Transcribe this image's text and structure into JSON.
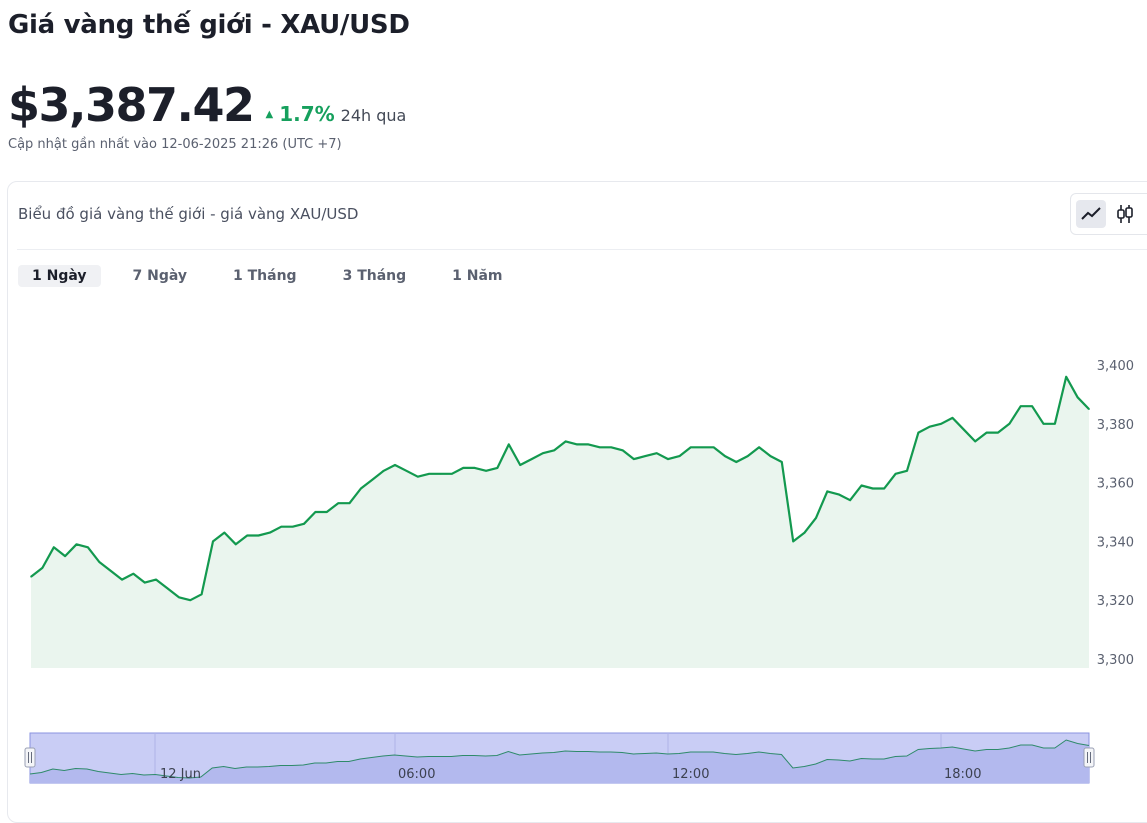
{
  "header": {
    "title": "Giá vàng thế giới - XAU/USD",
    "price": "$3,387.42",
    "change": "1.7%",
    "period": "24h qua",
    "updated": "Cập nhật gần nhất vào 12-06-2025 21:26 (UTC +7)"
  },
  "card": {
    "title": "Biểu đồ giá vàng thế giới - giá vàng XAU/USD",
    "chart_type_buttons": [
      "line-chart-icon",
      "candlestick-icon"
    ],
    "tabs": [
      {
        "label": "1 Ngày",
        "active": true
      },
      {
        "label": "7 Ngày",
        "active": false
      },
      {
        "label": "1 Tháng",
        "active": false
      },
      {
        "label": "3 Tháng",
        "active": false
      },
      {
        "label": "1 Năm",
        "active": false
      }
    ]
  },
  "colors": {
    "line": "#13994f",
    "area": "#eaf5ee",
    "positive": "#16a05d",
    "navigator_fill": "#c9cdf5",
    "navigator_border": "#8a93e0"
  },
  "chart_data": {
    "type": "area",
    "title": "",
    "xlabel": "",
    "ylabel": "",
    "ylim": [
      3300,
      3400
    ],
    "yticks": [
      "3,300",
      "3,320",
      "3,340",
      "3,360",
      "3,380",
      "3,400"
    ],
    "grid": false,
    "series": [
      {
        "values": [
          3328,
          3331,
          3338,
          3335,
          3339,
          3338,
          3333,
          3330,
          3327,
          3329,
          3326,
          3327,
          3324,
          3321,
          3320,
          3322,
          3340,
          3343,
          3339,
          3342,
          3342,
          3343,
          3345,
          3345,
          3346,
          3350,
          3350,
          3353,
          3353,
          3358,
          3361,
          3364,
          3366,
          3364,
          3362,
          3363,
          3363,
          3363,
          3365,
          3365,
          3364,
          3365,
          3373,
          3366,
          3368,
          3370,
          3371,
          3374,
          3373,
          3373,
          3372,
          3372,
          3371,
          3368,
          3369,
          3370,
          3368,
          3369,
          3372,
          3372,
          3372,
          3369,
          3367,
          3369,
          3372,
          3369,
          3367,
          3340,
          3343,
          3348,
          3357,
          3356,
          3354,
          3359,
          3358,
          3358,
          3363,
          3364,
          3377,
          3379,
          3380,
          3382,
          3378,
          3374,
          3377,
          3377,
          3380,
          3386,
          3386,
          3380,
          3380,
          3396,
          3389,
          3385
        ]
      }
    ],
    "navigator_labels": [
      "12 Jun",
      "06:00",
      "12:00",
      "18:00"
    ]
  }
}
